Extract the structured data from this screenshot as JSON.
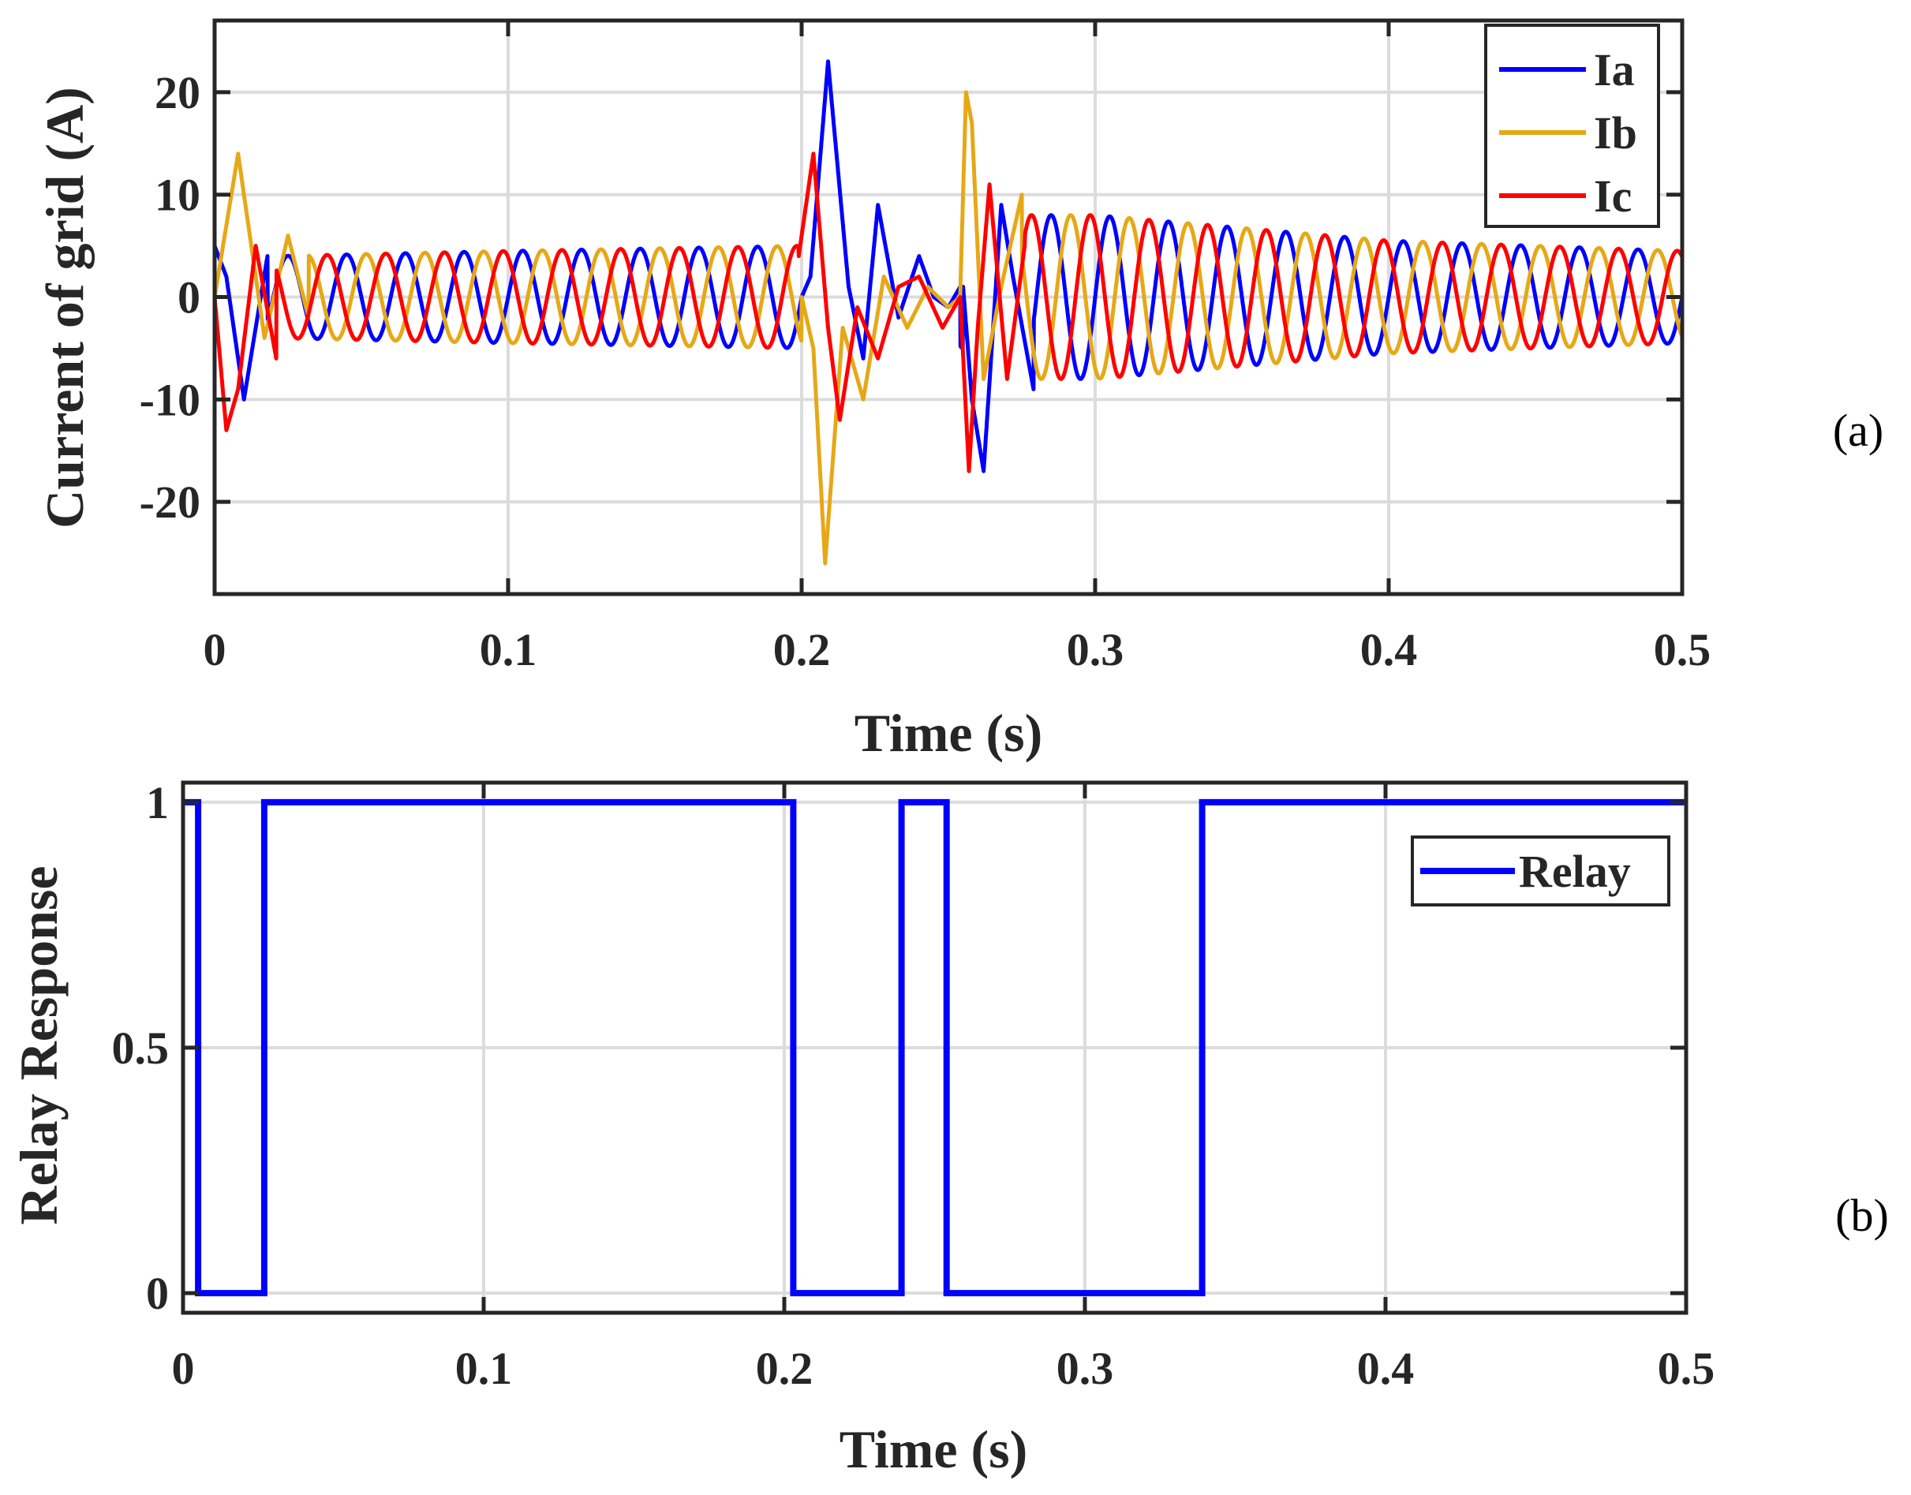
{
  "chart_data": [
    {
      "type": "line",
      "panel_label": "(a)",
      "xlabel": "Time (s)",
      "ylabel": "Current of grid (A)",
      "xlim": [
        0,
        0.5
      ],
      "ylim": [
        -29,
        27
      ],
      "xticks": [
        "0",
        "0.1",
        "0.2",
        "0.3",
        "0.4",
        "0.5"
      ],
      "yticks": [
        "20",
        "10",
        "0",
        "-10",
        "-20"
      ],
      "grid": true,
      "legend_position": "top-right",
      "series": [
        {
          "name": "Ia",
          "color": "#0000ff",
          "description": "three-phase grid current; phase shift 0 deg",
          "envelope": {
            "t": [
              0,
              0.02,
              0.1,
              0.2,
              0.202,
              0.255,
              0.26,
              0.3,
              0.4,
              0.5
            ],
            "amp": [
              3,
              4,
              4.5,
              5,
              5,
              5,
              8,
              8,
              5.5,
              4.5
            ]
          },
          "transients": [
            {
              "t": [
                0,
                0.004,
                0.01,
                0.018
              ],
              "v": [
                5,
                2,
                -10,
                4
              ]
            },
            {
              "t": [
                0.2,
                0.203,
                0.209,
                0.216,
                0.221,
                0.226,
                0.233,
                0.24,
                0.245,
                0.25,
                0.254
              ],
              "v": [
                0,
                2,
                23,
                1,
                -6,
                9,
                -2,
                4,
                0,
                -1,
                1
              ]
            },
            {
              "t": [
                0.255,
                0.258,
                0.262,
                0.268,
                0.272,
                0.279
              ],
              "v": [
                1,
                -10,
                -17,
                9,
                2,
                -9
              ]
            }
          ]
        },
        {
          "name": "Ib",
          "color": "#e6a817",
          "description": "three-phase grid current; phase shift -120 deg",
          "envelope": {
            "t": [
              0,
              0.02,
              0.1,
              0.2,
              0.202,
              0.255,
              0.26,
              0.3,
              0.4,
              0.5
            ],
            "amp": [
              3,
              4,
              4.5,
              5,
              5,
              5,
              8,
              8,
              5.5,
              4.5
            ]
          },
          "transients": [
            {
              "t": [
                0,
                0.008,
                0.017,
                0.025,
                0.032
              ],
              "v": [
                0,
                14,
                -4,
                6,
                -2
              ]
            },
            {
              "t": [
                0.2,
                0.204,
                0.208,
                0.214,
                0.221,
                0.228,
                0.236,
                0.243,
                0.25,
                0.254
              ],
              "v": [
                0,
                -5,
                -26,
                -3,
                -10,
                2,
                -3,
                1,
                -1,
                0
              ]
            },
            {
              "t": [
                0.254,
                0.256,
                0.258,
                0.262,
                0.268,
                0.275
              ],
              "v": [
                0,
                20,
                17,
                -8,
                1,
                10
              ]
            }
          ]
        },
        {
          "name": "Ic",
          "color": "#ff0000",
          "description": "three-phase grid current; phase shift +120 deg",
          "envelope": {
            "t": [
              0,
              0.02,
              0.1,
              0.2,
              0.202,
              0.255,
              0.26,
              0.3,
              0.4,
              0.5
            ],
            "amp": [
              3,
              4,
              4.5,
              5,
              5,
              5,
              8,
              8,
              5.5,
              4.5
            ]
          },
          "transients": [
            {
              "t": [
                0,
                0.004,
                0.008,
                0.014,
                0.021
              ],
              "v": [
                0,
                -13,
                -9,
                5,
                -6
              ]
            },
            {
              "t": [
                0.199,
                0.204,
                0.209,
                0.213,
                0.219,
                0.226,
                0.233,
                0.24,
                0.248,
                0.254
              ],
              "v": [
                4,
                14,
                -3,
                -12,
                -1,
                -6,
                1,
                2,
                -3,
                0
              ]
            },
            {
              "t": [
                0.254,
                0.257,
                0.26,
                0.264,
                0.27,
                0.276
              ],
              "v": [
                0,
                -17,
                -3,
                11,
                -8,
                5
              ]
            }
          ]
        }
      ]
    },
    {
      "type": "line",
      "panel_label": "(b)",
      "xlabel": "Time (s)",
      "ylabel": "Relay Response",
      "xlim": [
        0,
        0.5
      ],
      "ylim": [
        -0.04,
        1.04
      ],
      "xticks": [
        "0",
        "0.1",
        "0.2",
        "0.3",
        "0.4",
        "0.5"
      ],
      "yticks": [
        "1",
        "0.5",
        "0"
      ],
      "grid": true,
      "legend_position": "top-right",
      "series": [
        {
          "name": "Relay",
          "color": "#0000ff",
          "x": [
            0,
            0.005,
            0.005,
            0.027,
            0.027,
            0.203,
            0.203,
            0.239,
            0.239,
            0.254,
            0.254,
            0.339,
            0.339,
            0.5
          ],
          "y": [
            1,
            1,
            0,
            0,
            1,
            1,
            0,
            0,
            1,
            1,
            0,
            0,
            1,
            1
          ]
        }
      ]
    }
  ]
}
